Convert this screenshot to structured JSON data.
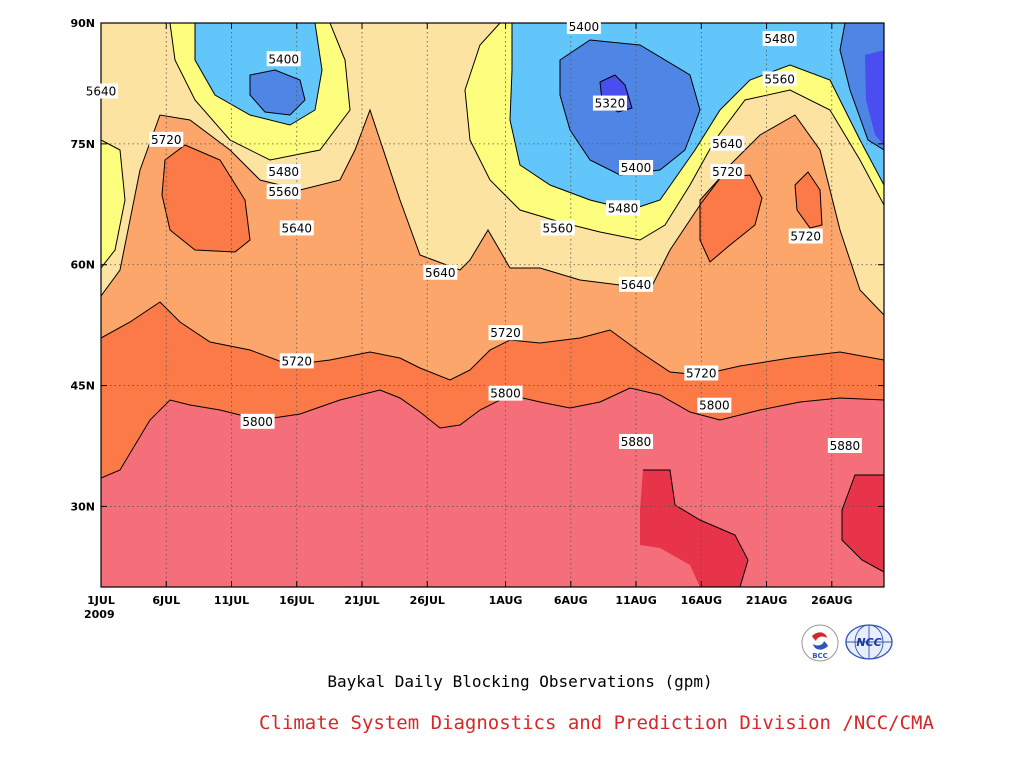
{
  "chart_data": {
    "type": "contour",
    "title": "Baykal Daily Blocking Observations (gpm)",
    "x_ticks": [
      "1JUL",
      "6JUL",
      "11JUL",
      "16JUL",
      "21JUL",
      "26JUL",
      "1AUG",
      "6AUG",
      "11AUG",
      "16AUG",
      "21AUG",
      "26AUG"
    ],
    "x_year": "2009",
    "y_ticks": [
      "30N",
      "45N",
      "60N",
      "75N",
      "90N"
    ],
    "ylim": [
      20,
      90
    ],
    "xlim_days": [
      1,
      61
    ],
    "contour_levels": [
      5320,
      5400,
      5480,
      5560,
      5640,
      5720,
      5800,
      5880
    ],
    "contour_labels": [
      {
        "text": "5640",
        "date": "1JUL",
        "lat": 81.5
      },
      {
        "text": "5400",
        "date": "15JUL",
        "lat": 85.5
      },
      {
        "text": "5480",
        "date": "15JUL",
        "lat": 71.5
      },
      {
        "text": "5560",
        "date": "15JUL",
        "lat": 69
      },
      {
        "text": "5640",
        "date": "16JUL",
        "lat": 64.5
      },
      {
        "text": "5720",
        "date": "6JUL",
        "lat": 75.5
      },
      {
        "text": "5640",
        "date": "27JUL",
        "lat": 59
      },
      {
        "text": "5720",
        "date": "1AUG",
        "lat": 51.5
      },
      {
        "text": "5720",
        "date": "16JUL",
        "lat": 48
      },
      {
        "text": "5800",
        "date": "13JUL",
        "lat": 40.5
      },
      {
        "text": "5800",
        "date": "1AUG",
        "lat": 44
      },
      {
        "text": "5400",
        "date": "7AUG",
        "lat": 89.5
      },
      {
        "text": "5320",
        "date": "9AUG",
        "lat": 80
      },
      {
        "text": "5400",
        "date": "11AUG",
        "lat": 72
      },
      {
        "text": "5480",
        "date": "10AUG",
        "lat": 67
      },
      {
        "text": "5560",
        "date": "5AUG",
        "lat": 64.5
      },
      {
        "text": "5640",
        "date": "11AUG",
        "lat": 57.5
      },
      {
        "text": "5480",
        "date": "22AUG",
        "lat": 88
      },
      {
        "text": "5560",
        "date": "22AUG",
        "lat": 83
      },
      {
        "text": "5640",
        "date": "18AUG",
        "lat": 75
      },
      {
        "text": "5720",
        "date": "18AUG",
        "lat": 71.5
      },
      {
        "text": "5720",
        "date": "24AUG",
        "lat": 63.5
      },
      {
        "text": "5720",
        "date": "16AUG",
        "lat": 46.5
      },
      {
        "text": "5800",
        "date": "17AUG",
        "lat": 42.5
      },
      {
        "text": "5880",
        "date": "11AUG",
        "lat": 38
      },
      {
        "text": "5880",
        "date": "27AUG",
        "lat": 37.5
      }
    ],
    "colors": {
      "lt5320": "#4a4ef0",
      "5320_5400": "#4f86e6",
      "5400_5480": "#62c6fa",
      "5480_5560": "#fdfe7e",
      "5560_5640": "#fde3a2",
      "5640_5720": "#fca66b",
      "5720_5800": "#fb7a47",
      "5800_5880": "#f46f79",
      "gt5880": "#e8344a"
    }
  },
  "footer": {
    "credit": "Climate System Diagnostics and Prediction Division /NCC/CMA",
    "logo_left_text": "BCC",
    "logo_right_text": "NCC"
  }
}
